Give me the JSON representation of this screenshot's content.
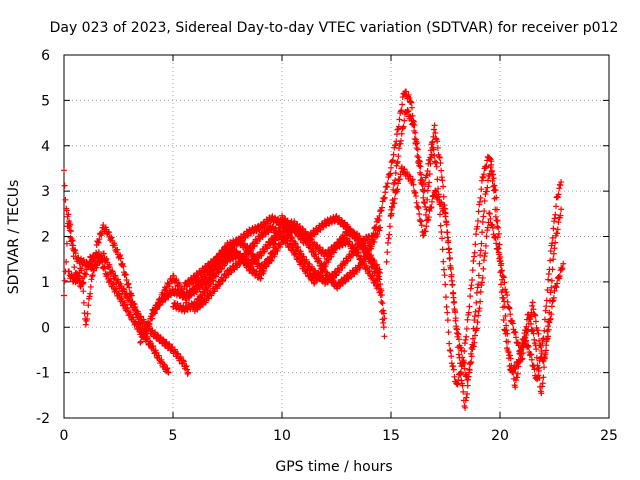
{
  "chart_data": {
    "type": "scatter",
    "title": "Day 023 of 2023, Sidereal Day-to-day VTEC variation (SDTVAR) for receiver p012",
    "xlabel": "GPS time / hours",
    "ylabel": "SDTVAR / TECUs",
    "xlim": [
      0,
      25
    ],
    "ylim": [
      -2,
      6
    ],
    "xticks": [
      0,
      5,
      10,
      15,
      20,
      25
    ],
    "yticks": [
      -2,
      -1,
      0,
      1,
      2,
      3,
      4,
      5,
      6
    ],
    "grid": true,
    "marker": "+",
    "series_color": "#ff0000",
    "tracks": [
      [
        [
          0.0,
          0.7
        ],
        [
          0.1,
          1.5
        ],
        [
          0.2,
          2.5
        ],
        [
          0.35,
          2.0
        ],
        [
          0.5,
          1.2
        ],
        [
          0.8,
          0.9
        ],
        [
          1.2,
          1.5
        ],
        [
          1.6,
          1.6
        ],
        [
          2.0,
          1.1
        ],
        [
          2.5,
          0.7
        ],
        [
          3.0,
          0.3
        ],
        [
          3.5,
          -0.1
        ],
        [
          4.0,
          -0.4
        ],
        [
          4.5,
          -0.8
        ],
        [
          4.8,
          -1.0
        ]
      ],
      [
        [
          0.0,
          3.4
        ],
        [
          0.1,
          2.6
        ],
        [
          0.3,
          2.0
        ],
        [
          0.6,
          1.5
        ],
        [
          1.0,
          1.4
        ],
        [
          1.4,
          1.3
        ],
        [
          1.8,
          1.6
        ],
        [
          2.2,
          1.2
        ],
        [
          2.6,
          0.9
        ],
        [
          3.0,
          0.6
        ],
        [
          3.5,
          0.2
        ],
        [
          4.0,
          -0.1
        ],
        [
          4.5,
          -0.3
        ],
        [
          5.0,
          -0.5
        ],
        [
          5.5,
          -0.8
        ],
        [
          5.7,
          -1.0
        ]
      ],
      [
        [
          0.2,
          1.2
        ],
        [
          0.5,
          1.0
        ],
        [
          0.8,
          1.3
        ],
        [
          1.0,
          0.0
        ],
        [
          1.2,
          0.8
        ],
        [
          1.5,
          1.8
        ],
        [
          1.8,
          2.2
        ],
        [
          2.0,
          2.1
        ],
        [
          2.3,
          1.8
        ],
        [
          2.6,
          1.5
        ],
        [
          2.9,
          1.0
        ],
        [
          3.2,
          0.5
        ],
        [
          3.5,
          0.0
        ],
        [
          3.8,
          -0.2
        ]
      ],
      [
        [
          3.5,
          -0.3
        ],
        [
          3.8,
          0.0
        ],
        [
          4.2,
          0.4
        ],
        [
          4.6,
          0.8
        ],
        [
          5.0,
          1.1
        ],
        [
          5.3,
          0.9
        ],
        [
          5.6,
          0.6
        ],
        [
          6.0,
          0.9
        ],
        [
          6.5,
          1.1
        ],
        [
          7.0,
          1.5
        ],
        [
          7.5,
          1.8
        ],
        [
          8.0,
          1.9
        ],
        [
          8.5,
          1.7
        ],
        [
          9.0,
          1.3
        ],
        [
          9.5,
          1.5
        ],
        [
          10.0,
          1.9
        ],
        [
          10.5,
          2.2
        ],
        [
          11.0,
          2.0
        ],
        [
          11.5,
          1.6
        ],
        [
          12.0,
          1.2
        ],
        [
          12.5,
          0.9
        ],
        [
          13.0,
          1.1
        ],
        [
          13.5,
          1.3
        ],
        [
          14.0,
          1.7
        ],
        [
          14.5,
          2.2
        ]
      ],
      [
        [
          4.0,
          0.3
        ],
        [
          4.5,
          0.6
        ],
        [
          5.0,
          0.8
        ],
        [
          5.5,
          0.7
        ],
        [
          6.0,
          0.8
        ],
        [
          6.5,
          1.0
        ],
        [
          7.0,
          1.3
        ],
        [
          7.5,
          1.6
        ],
        [
          8.0,
          1.9
        ],
        [
          8.5,
          2.1
        ],
        [
          9.0,
          2.2
        ],
        [
          9.5,
          2.4
        ],
        [
          10.0,
          2.3
        ],
        [
          10.5,
          1.9
        ],
        [
          11.0,
          1.5
        ],
        [
          11.5,
          1.2
        ],
        [
          12.0,
          1.0
        ],
        [
          12.5,
          1.2
        ],
        [
          13.0,
          1.5
        ],
        [
          13.5,
          1.8
        ],
        [
          14.0,
          2.0
        ]
      ],
      [
        [
          5.0,
          0.5
        ],
        [
          5.5,
          0.4
        ],
        [
          6.0,
          0.5
        ],
        [
          6.5,
          0.8
        ],
        [
          7.0,
          1.2
        ],
        [
          7.5,
          1.5
        ],
        [
          8.0,
          1.6
        ],
        [
          8.5,
          1.4
        ],
        [
          9.0,
          1.6
        ],
        [
          9.5,
          1.9
        ],
        [
          10.0,
          2.1
        ],
        [
          10.5,
          2.3
        ],
        [
          11.0,
          2.1
        ],
        [
          11.5,
          1.8
        ],
        [
          12.0,
          1.6
        ],
        [
          12.5,
          1.8
        ],
        [
          13.0,
          2.1
        ],
        [
          13.5,
          2.0
        ],
        [
          14.0,
          1.6
        ],
        [
          14.5,
          1.2
        ]
      ],
      [
        [
          5.5,
          0.9
        ],
        [
          6.0,
          1.1
        ],
        [
          6.5,
          1.3
        ],
        [
          7.0,
          1.5
        ],
        [
          7.5,
          1.7
        ],
        [
          8.0,
          1.6
        ],
        [
          8.5,
          1.3
        ],
        [
          9.0,
          1.1
        ],
        [
          9.5,
          1.6
        ],
        [
          10.0,
          2.4
        ],
        [
          10.5,
          2.2
        ],
        [
          11.0,
          1.9
        ],
        [
          11.5,
          2.1
        ],
        [
          12.0,
          2.3
        ],
        [
          12.5,
          2.4
        ],
        [
          13.0,
          2.2
        ],
        [
          13.5,
          1.9
        ],
        [
          14.0,
          1.5
        ],
        [
          14.5,
          1.0
        ],
        [
          14.7,
          0.2
        ]
      ],
      [
        [
          6.0,
          0.4
        ],
        [
          6.5,
          0.6
        ],
        [
          7.0,
          0.9
        ],
        [
          7.5,
          1.2
        ],
        [
          8.0,
          1.4
        ],
        [
          8.5,
          1.7
        ],
        [
          9.0,
          2.0
        ],
        [
          9.5,
          2.2
        ],
        [
          10.0,
          2.0
        ],
        [
          10.5,
          1.7
        ],
        [
          11.0,
          1.3
        ],
        [
          11.5,
          1.0
        ],
        [
          12.0,
          1.4
        ],
        [
          12.5,
          1.8
        ],
        [
          13.0,
          1.9
        ],
        [
          13.5,
          1.6
        ],
        [
          14.0,
          1.2
        ],
        [
          14.5,
          0.8
        ],
        [
          14.7,
          -0.2
        ]
      ],
      [
        [
          14.0,
          1.8
        ],
        [
          14.5,
          2.5
        ],
        [
          15.0,
          3.5
        ],
        [
          15.3,
          4.3
        ],
        [
          15.6,
          5.2
        ],
        [
          15.9,
          5.0
        ],
        [
          16.2,
          4.0
        ],
        [
          16.5,
          3.0
        ],
        [
          16.8,
          3.8
        ],
        [
          17.0,
          4.4
        ],
        [
          17.3,
          3.5
        ],
        [
          17.6,
          2.0
        ],
        [
          17.9,
          0.5
        ],
        [
          18.2,
          -1.0
        ],
        [
          18.4,
          -1.8
        ],
        [
          18.7,
          -0.5
        ],
        [
          19.0,
          1.0
        ],
        [
          19.3,
          2.8
        ],
        [
          19.6,
          3.6
        ],
        [
          19.9,
          2.0
        ],
        [
          20.2,
          0.0
        ],
        [
          20.5,
          -1.0
        ],
        [
          20.8,
          -0.8
        ],
        [
          21.1,
          -0.2
        ],
        [
          21.4,
          -0.6
        ],
        [
          21.7,
          -1.2
        ],
        [
          22.0,
          -0.2
        ],
        [
          22.3,
          1.5
        ],
        [
          22.6,
          2.8
        ],
        [
          22.8,
          3.2
        ]
      ],
      [
        [
          14.8,
          1.5
        ],
        [
          15.1,
          3.0
        ],
        [
          15.4,
          4.0
        ],
        [
          15.7,
          4.8
        ],
        [
          16.0,
          4.5
        ],
        [
          16.3,
          3.5
        ],
        [
          16.6,
          2.5
        ],
        [
          16.9,
          4.0
        ],
        [
          17.1,
          3.5
        ],
        [
          17.4,
          1.5
        ],
        [
          17.7,
          -0.5
        ],
        [
          18.0,
          -1.3
        ],
        [
          18.3,
          -0.8
        ],
        [
          18.6,
          0.5
        ],
        [
          18.9,
          2.0
        ],
        [
          19.2,
          3.3
        ],
        [
          19.5,
          3.8
        ],
        [
          19.8,
          3.0
        ],
        [
          20.1,
          1.0
        ],
        [
          20.4,
          -0.5
        ],
        [
          20.7,
          -1.3
        ],
        [
          21.0,
          -0.5
        ],
        [
          21.3,
          0.3
        ],
        [
          21.6,
          -0.3
        ],
        [
          21.9,
          -1.5
        ],
        [
          22.2,
          0.0
        ],
        [
          22.5,
          1.8
        ],
        [
          22.8,
          2.6
        ]
      ],
      [
        [
          15.0,
          2.5
        ],
        [
          15.5,
          3.5
        ],
        [
          16.0,
          3.2
        ],
        [
          16.5,
          2.0
        ],
        [
          17.0,
          3.0
        ],
        [
          17.5,
          2.5
        ],
        [
          18.0,
          0.0
        ],
        [
          18.5,
          -1.2
        ],
        [
          19.0,
          0.2
        ],
        [
          19.5,
          2.5
        ],
        [
          20.0,
          1.5
        ],
        [
          20.5,
          0.2
        ],
        [
          21.0,
          -0.7
        ],
        [
          21.5,
          0.5
        ],
        [
          22.0,
          -0.8
        ],
        [
          22.5,
          0.8
        ],
        [
          22.9,
          1.4
        ]
      ]
    ]
  }
}
